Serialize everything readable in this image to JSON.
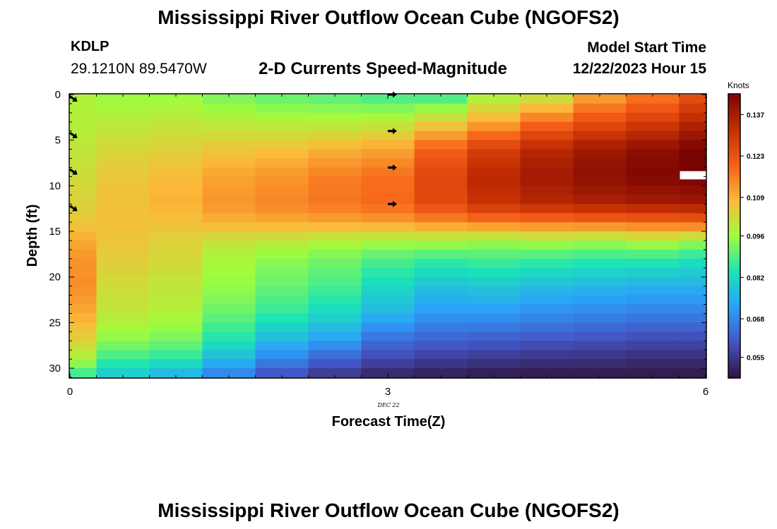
{
  "header": {
    "title": "Mississippi River Outflow Ocean Cube (NGOFS2)",
    "station": "KDLP",
    "coordinates": "29.1210N  89.5470W",
    "product": "2-D Currents Speed-Magnitude",
    "model_start_label": "Model Start Time",
    "model_start_value": "12/22/2023 Hour 15"
  },
  "footer": {
    "title": "Mississippi River Outflow Ocean Cube (NGOFS2)"
  },
  "colors": {
    "background": "#ffffff",
    "colormap": [
      "#30123b",
      "#4454c4",
      "#2ba0fb",
      "#1ae4b6",
      "#a2fc3c",
      "#fabb39",
      "#f65f18",
      "#c52f03",
      "#7a0403"
    ]
  },
  "chart_data": {
    "type": "heatmap",
    "title": "2-D Currents Speed-Magnitude",
    "xlabel": "Forecast Time(Z)",
    "ylabel": "Depth (ft)",
    "x_ticks": [
      "0",
      "3",
      "6"
    ],
    "x_tick_values": [
      0,
      3,
      6
    ],
    "x_day_label": "DEC 22",
    "x_day_label_at": 3,
    "y_ticks": [
      "0",
      "5",
      "10",
      "15",
      "20",
      "25",
      "30"
    ],
    "y_tick_values": [
      0,
      5,
      10,
      15,
      20,
      25,
      30
    ],
    "xlim": [
      0,
      6
    ],
    "ylim": [
      31,
      0
    ],
    "colorbar": {
      "title": "Knots",
      "ticks": [
        "0.137",
        "0.123",
        "0.109",
        "0.096",
        "0.082",
        "0.068",
        "0.055"
      ],
      "tick_values": [
        0.137,
        0.123,
        0.109,
        0.096,
        0.082,
        0.068,
        0.055
      ],
      "range": [
        0.048,
        0.144
      ]
    },
    "time_columns": [
      0,
      0.25,
      0.75,
      1.25,
      1.75,
      2.25,
      2.75,
      3.25,
      3.75,
      4.25,
      4.75,
      5.25,
      5.75
    ],
    "time_edges": [
      0,
      0.25,
      0.75,
      1.25,
      1.75,
      2.25,
      2.75,
      3.25,
      3.75,
      4.25,
      4.75,
      5.25,
      5.75,
      6
    ],
    "depth_profiles": [
      {
        "depth": 0,
        "speeds": [
          0.098,
          0.095,
          0.095,
          0.092,
          0.09,
          0.089,
          0.087,
          0.086,
          0.096,
          0.099,
          0.11,
          0.116,
          0.123
        ]
      },
      {
        "depth": 3,
        "speeds": [
          0.098,
          0.099,
          0.1,
          0.099,
          0.098,
          0.098,
          0.099,
          0.104,
          0.11,
          0.118,
          0.124,
          0.128,
          0.134
        ]
      },
      {
        "depth": 6,
        "speeds": [
          0.1,
          0.103,
          0.104,
          0.106,
          0.107,
          0.109,
          0.111,
          0.12,
          0.128,
          0.134,
          0.138,
          0.141,
          0.144
        ]
      },
      {
        "depth": 9,
        "speeds": [
          0.102,
          0.106,
          0.108,
          0.111,
          0.113,
          0.116,
          0.118,
          0.126,
          0.134,
          0.138,
          0.141,
          0.143,
          0.144
        ]
      },
      {
        "depth": 12,
        "speeds": [
          0.104,
          0.107,
          0.109,
          0.113,
          0.115,
          0.117,
          0.119,
          0.125,
          0.131,
          0.134,
          0.136,
          0.137,
          0.138
        ]
      },
      {
        "depth": 14,
        "speeds": [
          0.106,
          0.107,
          0.107,
          0.109,
          0.11,
          0.111,
          0.112,
          0.114,
          0.116,
          0.117,
          0.118,
          0.119,
          0.12
        ]
      },
      {
        "depth": 16,
        "speeds": [
          0.11,
          0.106,
          0.104,
          0.101,
          0.1,
          0.098,
          0.097,
          0.097,
          0.096,
          0.097,
          0.096,
          0.098,
          0.096
        ]
      },
      {
        "depth": 18,
        "speeds": [
          0.113,
          0.105,
          0.103,
          0.097,
          0.094,
          0.092,
          0.089,
          0.087,
          0.088,
          0.087,
          0.086,
          0.086,
          0.084
        ]
      },
      {
        "depth": 21,
        "speeds": [
          0.114,
          0.102,
          0.1,
          0.095,
          0.091,
          0.088,
          0.082,
          0.078,
          0.079,
          0.077,
          0.076,
          0.075,
          0.075
        ]
      },
      {
        "depth": 24,
        "speeds": [
          0.11,
          0.1,
          0.098,
          0.091,
          0.086,
          0.082,
          0.076,
          0.071,
          0.071,
          0.069,
          0.068,
          0.067,
          0.067
        ]
      },
      {
        "depth": 27,
        "speeds": [
          0.104,
          0.094,
          0.092,
          0.084,
          0.076,
          0.072,
          0.064,
          0.062,
          0.061,
          0.06,
          0.059,
          0.058,
          0.058
        ]
      },
      {
        "depth": 29,
        "speeds": [
          0.097,
          0.087,
          0.085,
          0.076,
          0.068,
          0.062,
          0.058,
          0.056,
          0.055,
          0.054,
          0.054,
          0.053,
          0.053
        ]
      },
      {
        "depth": 31,
        "speeds": [
          0.085,
          0.078,
          0.074,
          0.066,
          0.058,
          0.054,
          0.051,
          0.05,
          0.049,
          0.049,
          0.049,
          0.049,
          0.049
        ]
      }
    ],
    "gap": {
      "time_start": 5.75,
      "time_end": 6,
      "depth_start": 8.4,
      "depth_end": 9.3
    },
    "vectors": [
      {
        "time": 0,
        "depth": 0.2,
        "direction": "southeast"
      },
      {
        "time": 0,
        "depth": 4.2,
        "direction": "southeast"
      },
      {
        "time": 0,
        "depth": 8.2,
        "direction": "southeast"
      },
      {
        "time": 0,
        "depth": 12.2,
        "direction": "southeast"
      },
      {
        "time": 3,
        "depth": 0,
        "direction": "east"
      },
      {
        "time": 3,
        "depth": 4.0,
        "direction": "east"
      },
      {
        "time": 3,
        "depth": 8.0,
        "direction": "east"
      },
      {
        "time": 3,
        "depth": 12.0,
        "direction": "east"
      }
    ]
  }
}
